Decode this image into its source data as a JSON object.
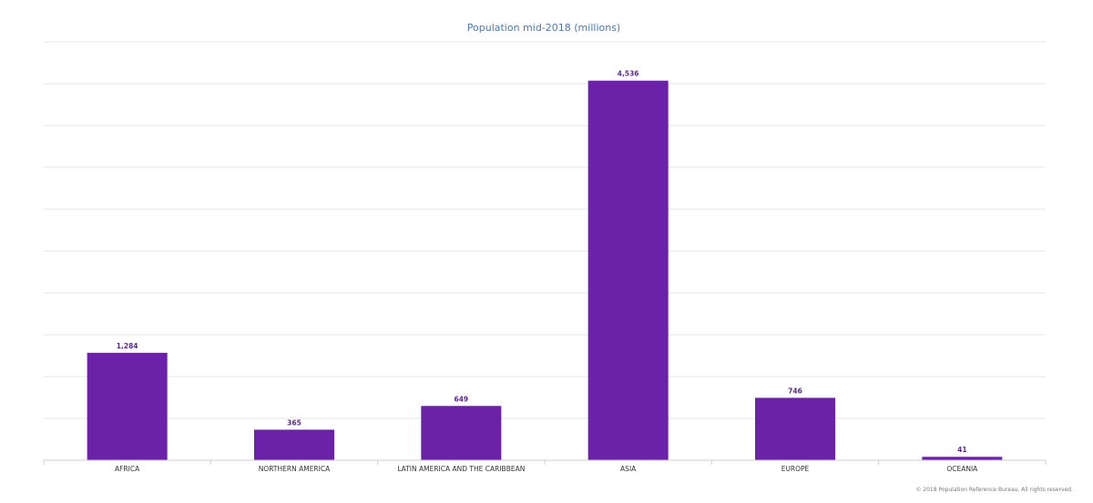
{
  "chart_data": {
    "type": "bar",
    "title": "Population mid-2018 (millions)",
    "categories": [
      "AFRICA",
      "NORTHERN AMERICA",
      "LATIN AMERICA AND THE CARIBBEAN",
      "ASIA",
      "EUROPE",
      "OCEANIA"
    ],
    "values": [
      1284,
      365,
      649,
      4536,
      746,
      41
    ],
    "value_labels": [
      "1,284",
      "365",
      "649",
      "4,536",
      "746",
      "41"
    ],
    "ylim": [
      0,
      5000
    ],
    "grid": true,
    "bar_color": "#6b22a8",
    "title_color": "#4a7ab5"
  },
  "footer": {
    "credit": "© 2018 Population Reference Bureau. All rights reserved."
  }
}
